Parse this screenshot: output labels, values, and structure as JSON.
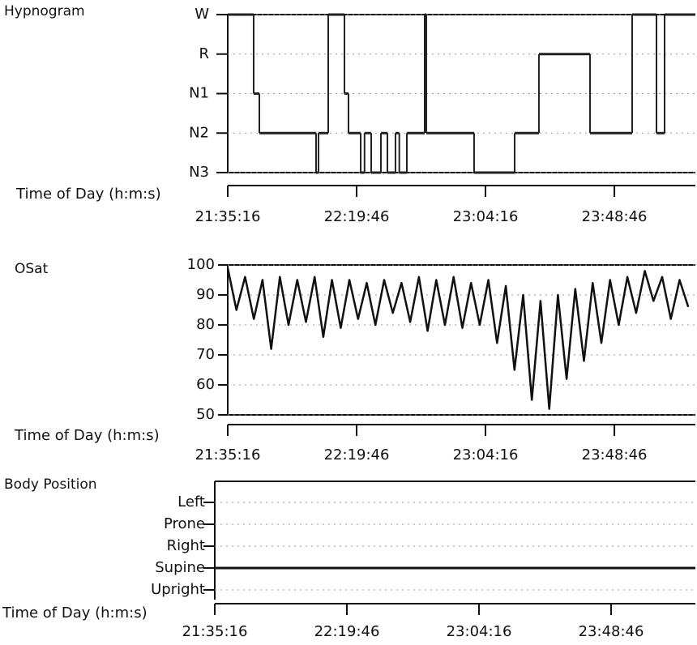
{
  "chart_data": [
    {
      "type": "step",
      "title": "Hypnogram",
      "x_label": "Time of Day (h:m:s)",
      "y_categories": [
        "W",
        "R",
        "N1",
        "N2",
        "N3"
      ],
      "xlim": [
        "21:35:16",
        "00:16:44"
      ],
      "xticks": [
        "21:35:16",
        "22:19:46",
        "23:04:16",
        "23:48:46"
      ],
      "grid": true,
      "color": "#222222",
      "x": [
        "21:35:16",
        "21:44:13",
        "21:46:11",
        "22:05:46",
        "22:06:36",
        "22:09:58",
        "22:15:34",
        "22:16:58",
        "22:21:10",
        "22:22:30",
        "22:24:48",
        "22:28:09",
        "22:30:24",
        "22:33:11",
        "22:34:30",
        "22:37:07",
        "22:43:16",
        "22:43:50",
        "23:00:20",
        "23:14:20",
        "23:22:43",
        "23:40:21",
        "23:54:54",
        "00:03:18",
        "00:06:06"
      ],
      "values": [
        "W",
        "N1",
        "N2",
        "N3",
        "N2",
        "W",
        "N1",
        "N2",
        "N3",
        "N2",
        "N3",
        "N2",
        "N3",
        "N2",
        "N3",
        "N2",
        "W",
        "N2",
        "N3",
        "N2",
        "R",
        "N2",
        "W",
        "N2",
        "W"
      ]
    },
    {
      "type": "line",
      "title": "OSat",
      "x_label": "Time of Day (h:m:s)",
      "xlim": [
        "21:35:16",
        "00:16:44"
      ],
      "xticks": [
        "21:35:16",
        "22:19:46",
        "23:04:16",
        "23:48:46"
      ],
      "ylim": [
        50,
        100
      ],
      "yticks": [
        50,
        60,
        70,
        80,
        90,
        100
      ],
      "grid": true,
      "color": "#111111",
      "x": [
        "21:35:16",
        "21:38:16",
        "21:41:16",
        "21:44:16",
        "21:47:16",
        "21:50:16",
        "21:53:16",
        "21:56:16",
        "21:59:16",
        "22:02:16",
        "22:05:16",
        "22:08:16",
        "22:11:16",
        "22:14:16",
        "22:17:16",
        "22:20:16",
        "22:23:16",
        "22:26:16",
        "22:29:16",
        "22:32:16",
        "22:35:16",
        "22:38:16",
        "22:41:16",
        "22:44:16",
        "22:47:16",
        "22:50:16",
        "22:53:16",
        "22:56:16",
        "22:59:16",
        "23:02:16",
        "23:05:16",
        "23:08:16",
        "23:11:16",
        "23:14:16",
        "23:17:16",
        "23:20:16",
        "23:23:16",
        "23:26:16",
        "23:29:16",
        "23:32:16",
        "23:35:16",
        "23:38:16",
        "23:41:16",
        "23:44:16",
        "23:47:16",
        "23:50:16",
        "23:53:16",
        "23:56:16",
        "23:59:16",
        "00:02:16",
        "00:05:16",
        "00:08:16",
        "00:11:16",
        "00:14:16"
      ],
      "values": [
        99,
        85,
        96,
        82,
        95,
        72,
        96,
        80,
        95,
        81,
        96,
        76,
        95,
        79,
        95,
        82,
        94,
        80,
        95,
        84,
        94,
        81,
        96,
        78,
        95,
        80,
        96,
        79,
        94,
        80,
        95,
        74,
        93,
        65,
        90,
        55,
        88,
        52,
        90,
        62,
        92,
        68,
        94,
        74,
        95,
        80,
        96,
        84,
        98,
        88,
        96,
        82,
        95,
        86
      ]
    },
    {
      "type": "step",
      "title": "Body Position",
      "x_label": "Time of Day (h:m:s)",
      "y_categories": [
        "Left",
        "Prone",
        "Right",
        "Supine",
        "Upright"
      ],
      "xlim": [
        "21:35:16",
        "00:17:09"
      ],
      "xticks": [
        "21:35:16",
        "22:19:46",
        "23:04:16",
        "23:48:46"
      ],
      "grid": true,
      "color": "#111111",
      "x": [
        "21:35:16"
      ],
      "values": [
        "Supine"
      ]
    }
  ]
}
